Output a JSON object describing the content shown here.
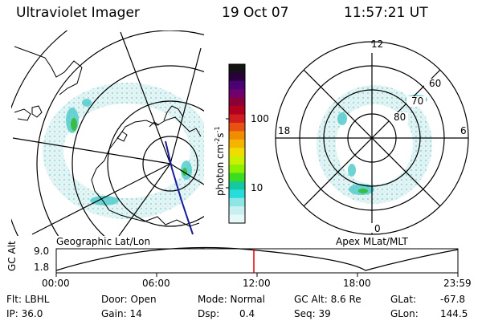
{
  "header": {
    "instrument": "Ultraviolet Imager",
    "date": "19 Oct 07",
    "time": "11:57:21 UT"
  },
  "left_panel": {
    "label": "Geographic Lat/Lon"
  },
  "right_panel": {
    "label": "Apex MLat/MLT",
    "mlt_labels": {
      "top": "12",
      "left": "18",
      "right": "6",
      "bottom": "0"
    },
    "lat_labels": [
      "60",
      "70",
      "80"
    ]
  },
  "colorbar": {
    "title": "photon cm",
    "title_sup1": "-2",
    "title_mid": "s",
    "title_sup2": "-1",
    "ticks": [
      "100",
      "10"
    ],
    "colors": [
      "#141414",
      "#2a003c",
      "#4b0073",
      "#6f006e",
      "#8c0036",
      "#b4001e",
      "#d01e1e",
      "#e85014",
      "#f08c00",
      "#f5b400",
      "#f0dc00",
      "#c8f000",
      "#8cf000",
      "#3cdc1e",
      "#14c8a0",
      "#28dcdc",
      "#8ce6e6",
      "#c8f0f0",
      "#e6f8f8"
    ]
  },
  "timeline": {
    "ylabel": "GC Alt",
    "y_ticks": [
      "9.0",
      "1.8"
    ],
    "x_ticks": [
      "00:00",
      "06:00",
      "12:00",
      "18:00",
      "23:59"
    ],
    "cursor_color": "#dd0000"
  },
  "info": {
    "flt": "Flt: LBHL",
    "ip": "IP: 36.0",
    "door": "Door: Open",
    "gain": "Gain: 14",
    "mode": "Mode: Normal",
    "dsp_label": "Dsp:",
    "dsp_value": "0.4",
    "gc_alt": "GC Alt: 8.6 Re",
    "seq": "Seq: 39",
    "glat_label": "GLat:",
    "glat_value": "-67.8",
    "glon_label": "GLon:",
    "glon_value": "144.5"
  }
}
